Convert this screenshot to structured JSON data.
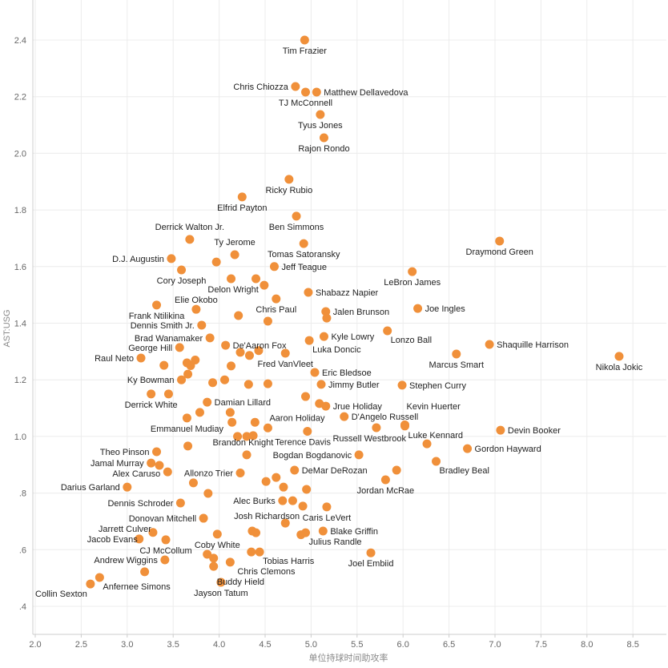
{
  "chart_data": {
    "type": "scatter",
    "title": "",
    "xlabel": "单位持球时间助攻率",
    "ylabel": "AST:USG",
    "xlim": [
      2.0,
      8.5
    ],
    "ylim": [
      0.3,
      2.5
    ],
    "x_ticks": [
      "2.0",
      "2.5",
      "3.0",
      "3.5",
      "4.0",
      "4.5",
      "5.0",
      "5.5",
      "6.0",
      "6.5",
      "7.0",
      "7.5",
      "8.0",
      "8.5"
    ],
    "y_ticks": [
      ".4",
      ".6",
      ".8",
      "1.0",
      "1.2",
      "1.4",
      "1.6",
      "1.8",
      "2.0",
      "2.2",
      "2.4"
    ],
    "grid": true,
    "color": "#f0903a",
    "points": [
      {
        "name": "Tim Frazier",
        "x": 4.93,
        "y": 2.4,
        "side": "below"
      },
      {
        "name": "Chris Chiozza",
        "x": 4.83,
        "y": 2.236,
        "side": "left"
      },
      {
        "name": "TJ McConnell",
        "x": 4.94,
        "y": 2.216,
        "side": "below"
      },
      {
        "name": "Matthew Dellavedova",
        "x": 5.06,
        "y": 2.216,
        "side": "right"
      },
      {
        "name": "Tyus Jones",
        "x": 5.1,
        "y": 2.137,
        "side": "below"
      },
      {
        "name": "Rajon Rondo",
        "x": 5.14,
        "y": 2.055,
        "side": "below"
      },
      {
        "name": "Ricky Rubio",
        "x": 4.76,
        "y": 1.908,
        "side": "below"
      },
      {
        "name": "Elfrid Payton",
        "x": 4.25,
        "y": 1.846,
        "side": "below"
      },
      {
        "name": "Ben Simmons",
        "x": 4.84,
        "y": 1.778,
        "side": "below"
      },
      {
        "name": "Derrick Walton Jr.",
        "x": 3.68,
        "y": 1.696,
        "side": "above"
      },
      {
        "name": "Draymond Green",
        "x": 7.05,
        "y": 1.69,
        "side": "below"
      },
      {
        "name": "Tomas Satoransky",
        "x": 4.92,
        "y": 1.681,
        "side": "below"
      },
      {
        "name": "Ty Jerome",
        "x": 4.17,
        "y": 1.642,
        "side": "above"
      },
      {
        "name": "D.J. Augustin",
        "x": 3.48,
        "y": 1.628,
        "side": "left"
      },
      {
        "name": "",
        "x": 3.97,
        "y": 1.616,
        "side": "none"
      },
      {
        "name": "Jeff Teague",
        "x": 4.6,
        "y": 1.6,
        "side": "right"
      },
      {
        "name": "Cory Joseph",
        "x": 3.59,
        "y": 1.588,
        "side": "below"
      },
      {
        "name": "LeBron James",
        "x": 6.1,
        "y": 1.582,
        "side": "below"
      },
      {
        "name": "Delon Wright",
        "x": 4.13,
        "y": 1.557,
        "side": "below"
      },
      {
        "name": "",
        "x": 4.4,
        "y": 1.557,
        "side": "none"
      },
      {
        "name": "",
        "x": 4.49,
        "y": 1.534,
        "side": "none"
      },
      {
        "name": "Shabazz Napier",
        "x": 4.97,
        "y": 1.509,
        "side": "right"
      },
      {
        "name": "Chris Paul",
        "x": 4.62,
        "y": 1.486,
        "side": "below"
      },
      {
        "name": "Frank Ntilikina",
        "x": 3.32,
        "y": 1.464,
        "side": "below"
      },
      {
        "name": "Elie Okobo",
        "x": 3.75,
        "y": 1.449,
        "side": "above"
      },
      {
        "name": "",
        "x": 4.21,
        "y": 1.427,
        "side": "none"
      },
      {
        "name": "Jalen Brunson",
        "x": 5.16,
        "y": 1.441,
        "side": "right"
      },
      {
        "name": "",
        "x": 5.17,
        "y": 1.418,
        "side": "none"
      },
      {
        "name": "",
        "x": 4.53,
        "y": 1.407,
        "side": "none"
      },
      {
        "name": "Joe Ingles",
        "x": 6.16,
        "y": 1.452,
        "side": "right"
      },
      {
        "name": "Dennis Smith Jr.",
        "x": 3.81,
        "y": 1.393,
        "side": "left"
      },
      {
        "name": "Lonzo Ball",
        "x": 5.83,
        "y": 1.373,
        "side": "below-right"
      },
      {
        "name": "Kyle Lowry",
        "x": 5.14,
        "y": 1.353,
        "side": "right"
      },
      {
        "name": "Brad Wanamaker",
        "x": 3.9,
        "y": 1.348,
        "side": "left"
      },
      {
        "name": "Shaquille Harrison",
        "x": 6.94,
        "y": 1.325,
        "side": "right"
      },
      {
        "name": "Luka Doncic",
        "x": 4.98,
        "y": 1.339,
        "side": "below-right"
      },
      {
        "name": "De'Aaron Fox",
        "x": 4.07,
        "y": 1.322,
        "side": "right"
      },
      {
        "name": "George Hill",
        "x": 3.57,
        "y": 1.314,
        "side": "left"
      },
      {
        "name": "Nikola Jokic",
        "x": 8.35,
        "y": 1.283,
        "side": "below"
      },
      {
        "name": "Marcus Smart",
        "x": 6.58,
        "y": 1.291,
        "side": "below"
      },
      {
        "name": "",
        "x": 4.23,
        "y": 1.297,
        "side": "none"
      },
      {
        "name": "",
        "x": 4.33,
        "y": 1.286,
        "side": "none"
      },
      {
        "name": "",
        "x": 4.43,
        "y": 1.303,
        "side": "none"
      },
      {
        "name": "Fred VanVleet",
        "x": 4.72,
        "y": 1.294,
        "side": "below"
      },
      {
        "name": "Raul Neto",
        "x": 3.15,
        "y": 1.277,
        "side": "left"
      },
      {
        "name": "",
        "x": 3.65,
        "y": 1.26,
        "side": "none"
      },
      {
        "name": "",
        "x": 3.69,
        "y": 1.25,
        "side": "none"
      },
      {
        "name": "",
        "x": 3.74,
        "y": 1.27,
        "side": "none"
      },
      {
        "name": "",
        "x": 3.4,
        "y": 1.251,
        "side": "none"
      },
      {
        "name": "",
        "x": 4.13,
        "y": 1.249,
        "side": "none"
      },
      {
        "name": "Eric Bledsoe",
        "x": 5.04,
        "y": 1.226,
        "side": "right"
      },
      {
        "name": "",
        "x": 3.66,
        "y": 1.22,
        "side": "none"
      },
      {
        "name": "Ky Bowman",
        "x": 3.59,
        "y": 1.2,
        "side": "left"
      },
      {
        "name": "",
        "x": 3.93,
        "y": 1.19,
        "side": "none"
      },
      {
        "name": "",
        "x": 4.06,
        "y": 1.2,
        "side": "none"
      },
      {
        "name": "",
        "x": 4.32,
        "y": 1.184,
        "side": "none"
      },
      {
        "name": "",
        "x": 4.53,
        "y": 1.186,
        "side": "none"
      },
      {
        "name": "Jimmy Butler",
        "x": 5.11,
        "y": 1.184,
        "side": "right"
      },
      {
        "name": "Stephen Curry",
        "x": 5.99,
        "y": 1.181,
        "side": "right"
      },
      {
        "name": "Derrick White",
        "x": 3.26,
        "y": 1.15,
        "side": "below"
      },
      {
        "name": "",
        "x": 3.45,
        "y": 1.15,
        "side": "none"
      },
      {
        "name": "Damian Lillard",
        "x": 3.87,
        "y": 1.121,
        "side": "right"
      },
      {
        "name": "",
        "x": 4.94,
        "y": 1.141,
        "side": "none"
      },
      {
        "name": "",
        "x": 5.09,
        "y": 1.116,
        "side": "none"
      },
      {
        "name": "Jrue Holiday",
        "x": 5.16,
        "y": 1.107,
        "side": "right"
      },
      {
        "name": "",
        "x": 3.79,
        "y": 1.085,
        "side": "none"
      },
      {
        "name": "",
        "x": 4.12,
        "y": 1.085,
        "side": "none"
      },
      {
        "name": "Emmanuel Mudiay",
        "x": 3.65,
        "y": 1.065,
        "side": "below"
      },
      {
        "name": "",
        "x": 4.14,
        "y": 1.05,
        "side": "none"
      },
      {
        "name": "",
        "x": 4.39,
        "y": 1.05,
        "side": "none"
      },
      {
        "name": "Aaron Holiday",
        "x": 4.53,
        "y": 1.03,
        "side": "above-right"
      },
      {
        "name": "D'Angelo Russell",
        "x": 5.36,
        "y": 1.07,
        "side": "right"
      },
      {
        "name": "Kevin Huerter",
        "x": 6.02,
        "y": 1.041,
        "side": "above-right"
      },
      {
        "name": "Luke Kennard",
        "x": 6.02,
        "y": 1.037,
        "side": "below-right"
      },
      {
        "name": "Russell Westbrook",
        "x": 5.71,
        "y": 1.031,
        "side": "below"
      },
      {
        "name": "Devin Booker",
        "x": 7.06,
        "y": 1.022,
        "side": "right"
      },
      {
        "name": "Terence Davis",
        "x": 4.96,
        "y": 1.018,
        "side": "below"
      },
      {
        "name": "",
        "x": 4.2,
        "y": 1.0,
        "side": "none"
      },
      {
        "name": "",
        "x": 4.3,
        "y": 1.0,
        "side": "none"
      },
      {
        "name": "",
        "x": 4.37,
        "y": 1.003,
        "side": "none"
      },
      {
        "name": "",
        "x": 3.66,
        "y": 0.966,
        "side": "none"
      },
      {
        "name": "Brandon Knight",
        "x": 4.3,
        "y": 0.935,
        "side": "above"
      },
      {
        "name": "Theo Pinson",
        "x": 3.32,
        "y": 0.946,
        "side": "left"
      },
      {
        "name": "",
        "x": 6.26,
        "y": 0.974,
        "side": "none"
      },
      {
        "name": "Gordon Hayward",
        "x": 6.7,
        "y": 0.957,
        "side": "right"
      },
      {
        "name": "Bogdan Bogdanovic",
        "x": 5.52,
        "y": 0.935,
        "side": "left"
      },
      {
        "name": "Jamal Murray",
        "x": 3.26,
        "y": 0.906,
        "side": "left"
      },
      {
        "name": "",
        "x": 3.35,
        "y": 0.898,
        "side": "none"
      },
      {
        "name": "Bradley Beal",
        "x": 6.36,
        "y": 0.912,
        "side": "below-right"
      },
      {
        "name": "DeMar DeRozan",
        "x": 4.82,
        "y": 0.881,
        "side": "right"
      },
      {
        "name": "",
        "x": 5.93,
        "y": 0.881,
        "side": "none"
      },
      {
        "name": "Alex Caruso",
        "x": 3.44,
        "y": 0.875,
        "side": "left"
      },
      {
        "name": "Allonzo Trier",
        "x": 4.23,
        "y": 0.871,
        "side": "left"
      },
      {
        "name": "Jordan McRae",
        "x": 5.81,
        "y": 0.847,
        "side": "below"
      },
      {
        "name": "",
        "x": 4.51,
        "y": 0.841,
        "side": "none"
      },
      {
        "name": "",
        "x": 4.62,
        "y": 0.855,
        "side": "none"
      },
      {
        "name": "Darius Garland",
        "x": 3.0,
        "y": 0.821,
        "side": "left"
      },
      {
        "name": "",
        "x": 3.72,
        "y": 0.836,
        "side": "none"
      },
      {
        "name": "",
        "x": 4.7,
        "y": 0.821,
        "side": "none"
      },
      {
        "name": "",
        "x": 4.95,
        "y": 0.813,
        "side": "none"
      },
      {
        "name": "",
        "x": 3.88,
        "y": 0.799,
        "side": "none"
      },
      {
        "name": "Alec Burks",
        "x": 4.69,
        "y": 0.773,
        "side": "left"
      },
      {
        "name": "",
        "x": 4.8,
        "y": 0.773,
        "side": "none"
      },
      {
        "name": "Dennis Schroder",
        "x": 3.58,
        "y": 0.765,
        "side": "left"
      },
      {
        "name": "Josh Richardson",
        "x": 4.91,
        "y": 0.754,
        "side": "below-left"
      },
      {
        "name": "Caris LeVert",
        "x": 5.17,
        "y": 0.751,
        "side": "below"
      },
      {
        "name": "Donovan Mitchell",
        "x": 3.83,
        "y": 0.711,
        "side": "left"
      },
      {
        "name": "",
        "x": 4.72,
        "y": 0.694,
        "side": "none"
      },
      {
        "name": "Jarrett Culver",
        "x": 3.28,
        "y": 0.661,
        "side": "above-left"
      },
      {
        "name": "",
        "x": 4.36,
        "y": 0.666,
        "side": "none"
      },
      {
        "name": "",
        "x": 4.4,
        "y": 0.66,
        "side": "none"
      },
      {
        "name": "Coby White",
        "x": 3.98,
        "y": 0.655,
        "side": "below"
      },
      {
        "name": "",
        "x": 4.89,
        "y": 0.653,
        "side": "none"
      },
      {
        "name": "Julius Randle",
        "x": 4.94,
        "y": 0.66,
        "side": "below-right"
      },
      {
        "name": "Blake Griffin",
        "x": 5.13,
        "y": 0.666,
        "side": "right"
      },
      {
        "name": "Jacob Evans",
        "x": 3.13,
        "y": 0.638,
        "side": "above-left"
      },
      {
        "name": "CJ McCollum",
        "x": 3.42,
        "y": 0.635,
        "side": "below"
      },
      {
        "name": "Joel Embiid",
        "x": 5.65,
        "y": 0.589,
        "side": "below"
      },
      {
        "name": "",
        "x": 4.35,
        "y": 0.592,
        "side": "none"
      },
      {
        "name": "Tobias Harris",
        "x": 4.44,
        "y": 0.592,
        "side": "below-right"
      },
      {
        "name": "",
        "x": 3.87,
        "y": 0.584,
        "side": "none"
      },
      {
        "name": "",
        "x": 3.94,
        "y": 0.57,
        "side": "none"
      },
      {
        "name": "Andrew Wiggins",
        "x": 3.41,
        "y": 0.564,
        "side": "left"
      },
      {
        "name": "Chris Clemons",
        "x": 4.12,
        "y": 0.556,
        "side": "right"
      },
      {
        "name": "Buddy Hield",
        "x": 3.94,
        "y": 0.541,
        "side": "below-right"
      },
      {
        "name": "",
        "x": 3.19,
        "y": 0.522,
        "side": "none"
      },
      {
        "name": "Anfernee Simons",
        "x": 2.7,
        "y": 0.502,
        "side": "below-right"
      },
      {
        "name": "Collin Sexton",
        "x": 2.6,
        "y": 0.479,
        "side": "below-left"
      },
      {
        "name": "Jayson Tatum",
        "x": 4.02,
        "y": 0.485,
        "side": "below"
      }
    ]
  }
}
